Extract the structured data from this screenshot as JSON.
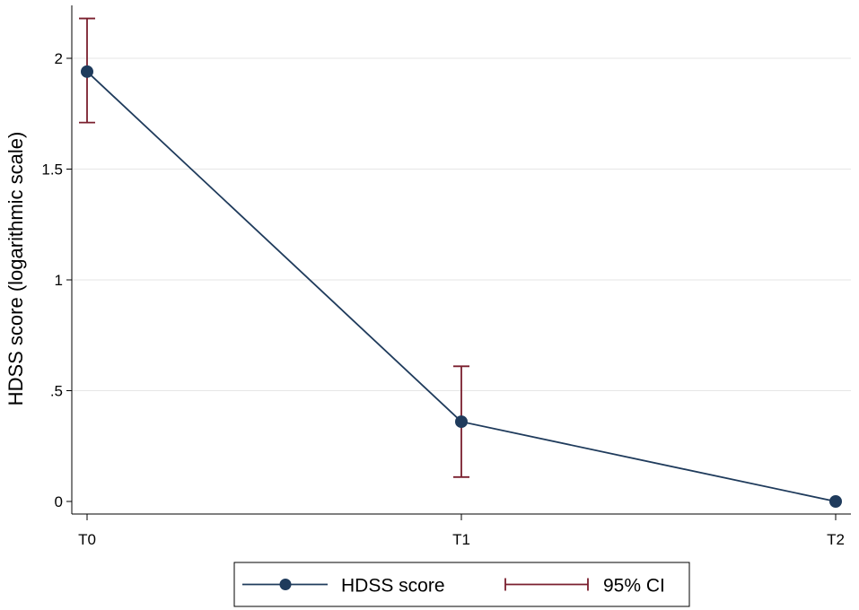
{
  "chart_data": {
    "type": "line",
    "title": "",
    "xlabel": "",
    "ylabel": "HDSS score (logarithmic scale)",
    "categories": [
      "T0",
      "T1",
      "T2"
    ],
    "y_ticks": [
      {
        "value": 0,
        "label": "0"
      },
      {
        "value": 0.5,
        "label": ".5"
      },
      {
        "value": 1,
        "label": "1"
      },
      {
        "value": 1.5,
        "label": "1.5"
      },
      {
        "value": 2,
        "label": "2"
      }
    ],
    "ylim": [
      0,
      2.2
    ],
    "grid": true,
    "series": [
      {
        "name": "HDSS score",
        "values": [
          1.94,
          0.36,
          0.0
        ],
        "color": "#1f3b5c"
      }
    ],
    "error_bars": {
      "name": "95% CI",
      "color": "#7a1f2e",
      "lower": [
        1.71,
        0.11,
        null
      ],
      "upper": [
        2.18,
        0.61,
        null
      ]
    },
    "legend": {
      "position": "bottom-center",
      "items": [
        {
          "label": "HDSS score",
          "kind": "line-marker"
        },
        {
          "label": "95% CI",
          "kind": "error-bar"
        }
      ]
    }
  }
}
